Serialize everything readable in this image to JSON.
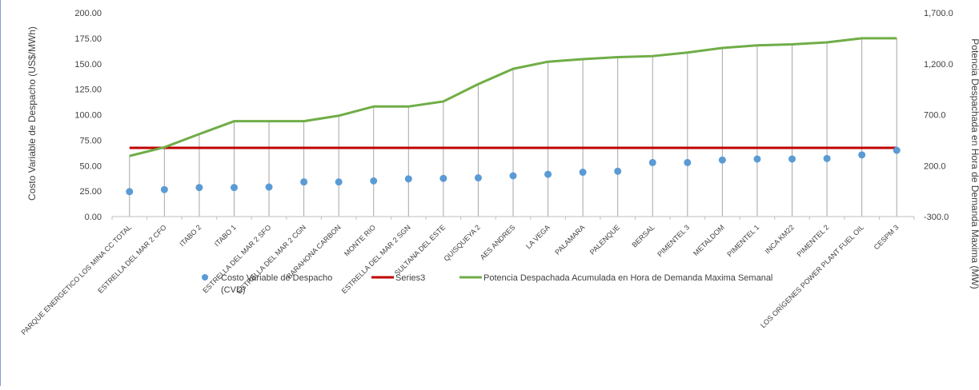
{
  "chart_data": {
    "type": "line",
    "categories": [
      "PARQUE ENERGETICO LOS MINA CC TOTAL",
      "ESTRELLA DEL MAR 2 CFO",
      "ITABO 2",
      "ITABO 1",
      "ESTRELLA DEL MAR 2 SFO",
      "ESTRELLA DEL MAR 2 CGN",
      "BARAHONA CARBON",
      "MONTE RIO",
      "ESTRELLA DEL MAR 2 SGN",
      "SULTANA DEL ESTE",
      "QUISQUEYA 2",
      "AES ANDRES",
      "LA VEGA",
      "PALAMARA",
      "PALENQUE",
      "BERSAL",
      "PIMENTEL 3",
      "METALDOM",
      "PIMENTEL 1",
      "INCA KM22",
      "PIMENTEL 2",
      "LOS ORÍGENES POWER PLANT FUEL OIL",
      "CESPM 3"
    ],
    "ylabel": "Costo Variable de Despacho (US$/MWh)",
    "y2label": "Potencia Despachada en Hora de Demanda Maxima (MW)",
    "ylim": [
      0,
      200
    ],
    "y2lim": [
      -300,
      1700
    ],
    "yticks": [
      "0.00",
      "25.00",
      "50.00",
      "75.00",
      "100.00",
      "125.00",
      "150.00",
      "175.00",
      "200.00"
    ],
    "y2ticks": [
      "-300.0",
      "200.0",
      "700.0",
      "1,200.0",
      "1,700.0"
    ],
    "series": [
      {
        "name": "Costo Variable de Despacho (CVD)",
        "kind": "scatter",
        "axis": "left",
        "color": "#5b9bd5",
        "values": [
          24.5,
          26.5,
          28.5,
          28.5,
          29,
          34,
          34,
          35,
          37,
          37.5,
          38,
          40,
          41.5,
          43.5,
          44.5,
          53,
          53,
          55.5,
          56.5,
          56.5,
          57,
          60.5,
          65
        ]
      },
      {
        "name": "Series3",
        "kind": "line",
        "axis": "left",
        "color": "#c00000",
        "values": [
          67.5,
          67.5,
          67.5,
          67.5,
          67.5,
          67.5,
          67.5,
          67.5,
          67.5,
          67.5,
          67.5,
          67.5,
          67.5,
          67.5,
          67.5,
          67.5,
          67.5,
          67.5,
          67.5,
          67.5,
          67.5,
          67.5,
          67.5
        ]
      },
      {
        "name": "Potencia Despachada Acumulada en Hora de Demanda Maxima Semanal",
        "kind": "line",
        "axis": "right",
        "color": "#70ad47",
        "values": [
          295,
          380,
          510,
          636,
          636,
          636,
          690,
          780,
          780,
          830,
          1000,
          1150,
          1220,
          1245,
          1265,
          1275,
          1310,
          1355,
          1380,
          1390,
          1410,
          1450,
          1450
        ]
      }
    ],
    "legend_position": "bottom",
    "grid": false
  },
  "legend": {
    "item1": "Costo Variable de Despacho",
    "item1_line2": "(CVD)",
    "item2": "Series3",
    "item3": "Potencia Despachada Acumulada en Hora de Demanda Maxima Semanal"
  }
}
